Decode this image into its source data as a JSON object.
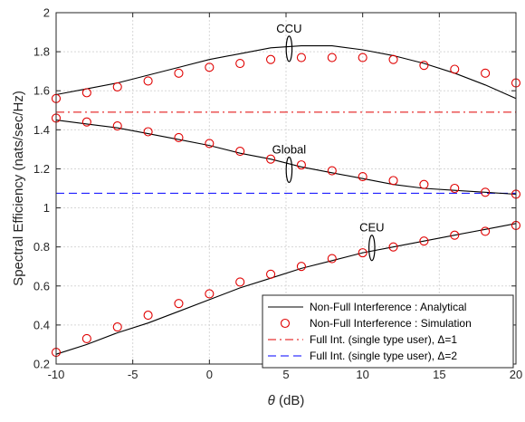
{
  "chart_data": {
    "type": "line",
    "title": "",
    "xlabel": "θ (dB)",
    "xlabel_var": "θ",
    "xlabel_unit": " (dB)",
    "ylabel": "Spectral Efficiency (nats/sec/Hz)",
    "xlim": [
      -10,
      20
    ],
    "ylim": [
      0.2,
      2
    ],
    "xticks": [
      -10,
      -5,
      0,
      5,
      10,
      15,
      20
    ],
    "yticks": [
      0.2,
      0.4,
      0.6,
      0.8,
      1,
      1.2,
      1.4,
      1.6,
      1.8,
      2
    ],
    "grid": true,
    "legend_position": "bottom-right",
    "series": [
      {
        "name": "Non-Full Interference : Analytical",
        "kind": "line",
        "style": "solid",
        "color": "#000000",
        "curves": [
          {
            "group": "CCU",
            "x": [
              -10,
              -8,
              -6,
              -4,
              -2,
              0,
              2,
              4,
              6,
              8,
              10,
              12,
              14,
              16,
              18,
              20
            ],
            "y": [
              1.58,
              1.61,
              1.64,
              1.68,
              1.72,
              1.76,
              1.79,
              1.82,
              1.83,
              1.83,
              1.81,
              1.78,
              1.74,
              1.69,
              1.63,
              1.56
            ]
          },
          {
            "group": "Global",
            "x": [
              -10,
              -8,
              -6,
              -4,
              -2,
              0,
              2,
              4,
              6,
              8,
              10,
              12,
              14,
              16,
              18,
              20
            ],
            "y": [
              1.45,
              1.43,
              1.41,
              1.38,
              1.35,
              1.32,
              1.28,
              1.25,
              1.21,
              1.18,
              1.15,
              1.12,
              1.1,
              1.09,
              1.08,
              1.07
            ]
          },
          {
            "group": "CEU",
            "x": [
              -10,
              -8,
              -6,
              -4,
              -2,
              0,
              2,
              4,
              6,
              8,
              10,
              12,
              14,
              16,
              18,
              20
            ],
            "y": [
              0.25,
              0.3,
              0.36,
              0.41,
              0.47,
              0.53,
              0.59,
              0.64,
              0.69,
              0.73,
              0.77,
              0.8,
              0.83,
              0.86,
              0.89,
              0.92
            ]
          }
        ]
      },
      {
        "name": "Non-Full Interference : Simulation",
        "kind": "markers",
        "marker": "circle",
        "color": "#e00000",
        "curves": [
          {
            "group": "CCU",
            "x": [
              -10,
              -8,
              -6,
              -4,
              -2,
              0,
              2,
              4,
              6,
              8,
              10,
              12,
              14,
              16,
              18,
              20
            ],
            "y": [
              1.56,
              1.59,
              1.62,
              1.65,
              1.69,
              1.72,
              1.74,
              1.76,
              1.77,
              1.77,
              1.77,
              1.76,
              1.73,
              1.71,
              1.69,
              1.64
            ]
          },
          {
            "group": "Global",
            "x": [
              -10,
              -8,
              -6,
              -4,
              -2,
              0,
              2,
              4,
              6,
              8,
              10,
              12,
              14,
              16,
              18,
              20
            ],
            "y": [
              1.46,
              1.44,
              1.42,
              1.39,
              1.36,
              1.33,
              1.29,
              1.25,
              1.22,
              1.19,
              1.16,
              1.14,
              1.12,
              1.1,
              1.08,
              1.07
            ]
          },
          {
            "group": "CEU",
            "x": [
              -10,
              -8,
              -6,
              -4,
              -2,
              0,
              2,
              4,
              6,
              8,
              10,
              12,
              14,
              16,
              18,
              20
            ],
            "y": [
              0.26,
              0.33,
              0.39,
              0.45,
              0.51,
              0.56,
              0.62,
              0.66,
              0.7,
              0.74,
              0.77,
              0.8,
              0.83,
              0.86,
              0.88,
              0.91
            ]
          }
        ]
      },
      {
        "name": "Full Int. (single type user),  Δ=1",
        "kind": "hline",
        "style": "dashdot",
        "color": "#e00000",
        "y": 1.49
      },
      {
        "name": "Full Int. (single type user),  Δ=2",
        "kind": "hline",
        "style": "dashed",
        "color": "#0000ff",
        "y": 1.075
      }
    ],
    "annotations": [
      {
        "text": "CCU",
        "x": 5.2,
        "y": 1.815
      },
      {
        "text": "Global",
        "x": 5.2,
        "y": 1.195
      },
      {
        "text": "CEU",
        "x": 10.6,
        "y": 0.795
      }
    ]
  }
}
